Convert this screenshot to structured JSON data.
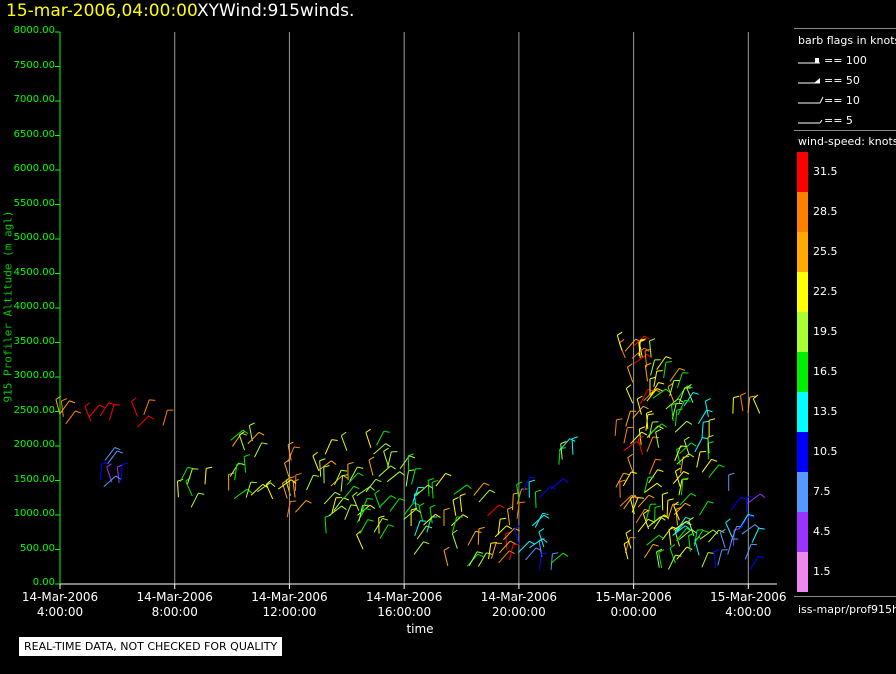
{
  "header": {
    "date": "15-mar-2006,04:00:00",
    "title": "XYWind:915winds."
  },
  "disclaimer": "REAL-TIME DATA, NOT CHECKED FOR QUALITY",
  "legend": {
    "barb_title": "barb flags in knots",
    "barbs": [
      "== 100",
      "== 50",
      "== 10",
      "== 5"
    ],
    "speed_title": "wind-speed: knots",
    "speed_labels": [
      "31.5",
      "28.5",
      "25.5",
      "22.5",
      "19.5",
      "16.5",
      "13.5",
      "10.5",
      "7.5",
      "4.5",
      "1.5"
    ],
    "source": "iss-mapr/prof915h"
  },
  "colors": {
    "background": "#000000",
    "axis": "#00ff00",
    "grid": "#999999",
    "title_date": "#ffff00",
    "colorbar": [
      "#ff0000",
      "#ff7f00",
      "#ffaa00",
      "#ffff00",
      "#aaff33",
      "#00ee00",
      "#00ffff",
      "#0000ff",
      "#5599ff",
      "#9933ff",
      "#ee88ee"
    ]
  },
  "chart_data": {
    "type": "scatter",
    "title": "XYWind:915winds.",
    "xlabel": "time",
    "ylabel": "915 Profiler Altitude (m agl)",
    "ylim": [
      0,
      8000
    ],
    "xlim_hours": [
      0,
      25
    ],
    "yticks": [
      {
        "value": 0,
        "label": "0.00"
      },
      {
        "value": 500,
        "label": "500.00"
      },
      {
        "value": 1000,
        "label": "1000.00"
      },
      {
        "value": 1500,
        "label": "1500.00"
      },
      {
        "value": 2000,
        "label": "2000.00"
      },
      {
        "value": 2500,
        "label": "2500.00"
      },
      {
        "value": 3000,
        "label": "3000.00"
      },
      {
        "value": 3500,
        "label": "3500.00"
      },
      {
        "value": 4000,
        "label": "4000.00"
      },
      {
        "value": 4500,
        "label": "4500.00"
      },
      {
        "value": 5000,
        "label": "5000.00"
      },
      {
        "value": 5500,
        "label": "5500.00"
      },
      {
        "value": 6000,
        "label": "6000.00"
      },
      {
        "value": 6500,
        "label": "6500.00"
      },
      {
        "value": 7000,
        "label": "7000.00"
      },
      {
        "value": 7500,
        "label": "7500.00"
      },
      {
        "value": 8000,
        "label": "8000.00"
      }
    ],
    "xticks": [
      {
        "hour": 0,
        "date": "14-Mar-2006",
        "time": "4:00:00"
      },
      {
        "hour": 4,
        "date": "14-Mar-2006",
        "time": "8:00:00"
      },
      {
        "hour": 8,
        "date": "14-Mar-2006",
        "time": "12:00:00"
      },
      {
        "hour": 12,
        "date": "14-Mar-2006",
        "time": "16:00:00"
      },
      {
        "hour": 16,
        "date": "14-Mar-2006",
        "time": "20:00:00"
      },
      {
        "hour": 20,
        "date": "15-Mar-2006",
        "time": "0:00:00"
      },
      {
        "hour": 24,
        "date": "15-Mar-2006",
        "time": "4:00:00"
      }
    ],
    "grid": true,
    "colorbar_label": "wind-speed: knots",
    "colorbar_ticks": [
      31.5,
      28.5,
      25.5,
      22.5,
      19.5,
      16.5,
      13.5,
      10.5,
      7.5,
      4.5,
      1.5
    ],
    "wind_profile_summary": [
      {
        "hour": 0.0,
        "alt_min": 2300,
        "alt_max": 2600,
        "speed": 30
      },
      {
        "hour": 1.5,
        "alt_min": 2350,
        "alt_max": 2500,
        "speed": 31
      },
      {
        "hour": 2.0,
        "alt_min": 1300,
        "alt_max": 1800,
        "speed": 9
      },
      {
        "hour": 3.0,
        "alt_min": 2200,
        "alt_max": 2500,
        "speed": 30
      },
      {
        "hour": 4.5,
        "alt_min": 1100,
        "alt_max": 1500,
        "speed": 20
      },
      {
        "hour": 6.5,
        "alt_min": 1200,
        "alt_max": 2200,
        "speed": 22
      },
      {
        "hour": 8.0,
        "alt_min": 900,
        "alt_max": 1800,
        "speed": 24
      },
      {
        "hour": 9.5,
        "alt_min": 700,
        "alt_max": 2000,
        "speed": 22
      },
      {
        "hour": 11.0,
        "alt_min": 500,
        "alt_max": 2100,
        "speed": 20
      },
      {
        "hour": 12.5,
        "alt_min": 300,
        "alt_max": 1700,
        "speed": 18
      },
      {
        "hour": 14.0,
        "alt_min": 250,
        "alt_max": 1300,
        "speed": 22
      },
      {
        "hour": 15.5,
        "alt_min": 200,
        "alt_max": 1200,
        "speed": 28
      },
      {
        "hour": 16.5,
        "alt_min": 200,
        "alt_max": 1400,
        "speed": 12
      },
      {
        "hour": 17.5,
        "alt_min": 1700,
        "alt_max": 1950,
        "speed": 17
      },
      {
        "hour": 20.0,
        "alt_min": 300,
        "alt_max": 3500,
        "speed": 26
      },
      {
        "hour": 21.0,
        "alt_min": 200,
        "alt_max": 3500,
        "speed": 20
      },
      {
        "hour": 22.0,
        "alt_min": 200,
        "alt_max": 2800,
        "speed": 18
      },
      {
        "hour": 23.5,
        "alt_min": 200,
        "alt_max": 1400,
        "speed": 10
      },
      {
        "hour": 24.0,
        "alt_min": 2400,
        "alt_max": 2600,
        "speed": 27
      }
    ]
  }
}
